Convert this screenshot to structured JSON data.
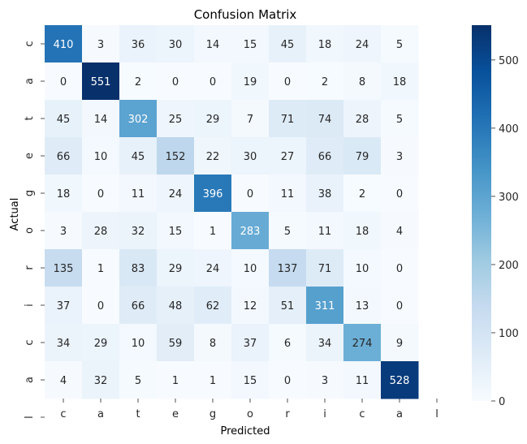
{
  "chart_data": {
    "type": "heatmap",
    "title": "Confusion Matrix",
    "xlabel": "Predicted",
    "ylabel": "Actual",
    "x_categories": [
      "c",
      "a",
      "t",
      "e",
      "g",
      "o",
      "r",
      "i",
      "c",
      "a",
      "l"
    ],
    "y_categories": [
      "c",
      "a",
      "t",
      "e",
      "g",
      "o",
      "r",
      "i",
      "c",
      "a",
      "l"
    ],
    "values": [
      [
        410,
        3,
        36,
        30,
        14,
        15,
        45,
        18,
        24,
        5,
        null
      ],
      [
        0,
        551,
        2,
        0,
        0,
        19,
        0,
        2,
        8,
        18,
        null
      ],
      [
        45,
        14,
        302,
        25,
        29,
        7,
        71,
        74,
        28,
        5,
        null
      ],
      [
        66,
        10,
        45,
        152,
        22,
        30,
        27,
        66,
        79,
        3,
        null
      ],
      [
        18,
        0,
        11,
        24,
        396,
        0,
        11,
        38,
        2,
        0,
        null
      ],
      [
        3,
        28,
        32,
        15,
        1,
        283,
        5,
        11,
        18,
        4,
        null
      ],
      [
        135,
        1,
        83,
        29,
        24,
        10,
        137,
        71,
        10,
        0,
        null
      ],
      [
        37,
        0,
        66,
        48,
        62,
        12,
        51,
        311,
        13,
        0,
        null
      ],
      [
        34,
        29,
        10,
        59,
        8,
        37,
        6,
        34,
        274,
        9,
        null
      ],
      [
        4,
        32,
        5,
        1,
        1,
        15,
        0,
        3,
        11,
        528,
        null
      ],
      [
        null,
        null,
        null,
        null,
        null,
        null,
        null,
        null,
        null,
        null,
        null
      ]
    ],
    "colormap": "Blues",
    "vmin": 0,
    "vmax": 551,
    "colorbar_ticks": [
      0,
      100,
      200,
      300,
      400,
      500
    ]
  }
}
